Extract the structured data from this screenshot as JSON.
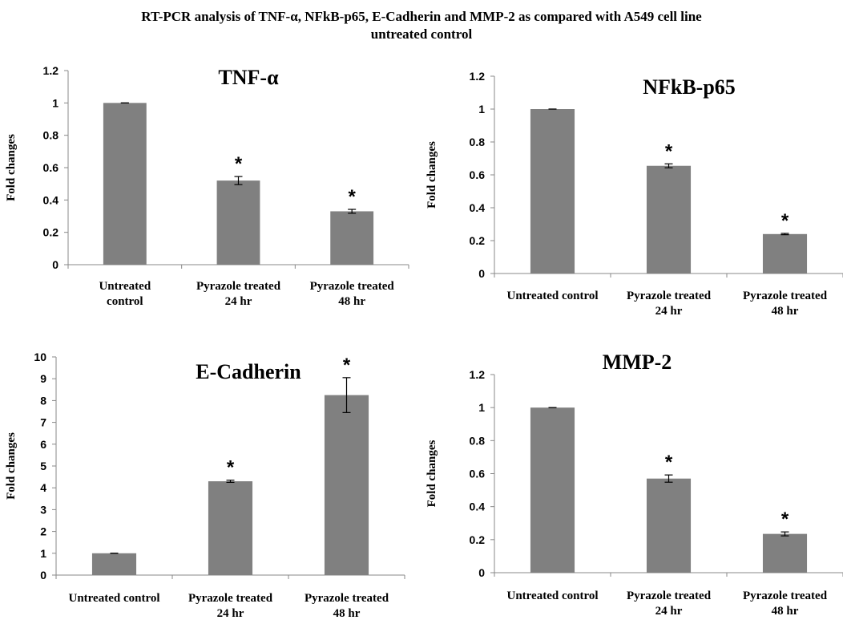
{
  "figure": {
    "title_line1": "RT-PCR analysis of TNF-α, NFkB-p65,  E-Cadherin and MMP-2 as compared with A549 cell line",
    "title_line2": "untreated control"
  },
  "bar_color": "#808080",
  "chart_data": [
    {
      "type": "bar",
      "title": "TNF-α",
      "ylabel": "Fold changes",
      "categories": [
        [
          "Untreated",
          "control"
        ],
        [
          "Pyrazole treated",
          "24 hr"
        ],
        [
          "Pyrazole treated",
          "48 hr"
        ]
      ],
      "values": [
        1.0,
        0.52,
        0.33
      ],
      "errors": [
        0.0,
        0.025,
        0.012
      ],
      "significance": [
        "",
        "*",
        "*"
      ],
      "ylim": [
        0,
        1.2
      ],
      "yticks": [
        "0",
        "0.2",
        "0.4",
        "0.6",
        "0.8",
        "1",
        "1.2"
      ]
    },
    {
      "type": "bar",
      "title": "NFkB-p65",
      "ylabel": "Fold changes",
      "categories": [
        [
          "Untreated control"
        ],
        [
          "Pyrazole treated",
          "24 hr"
        ],
        [
          "Pyrazole treated",
          "48 hr"
        ]
      ],
      "values": [
        1.0,
        0.655,
        0.24
      ],
      "errors": [
        0.0,
        0.012,
        0.004
      ],
      "significance": [
        "",
        "*",
        "*"
      ],
      "ylim": [
        0,
        1.2
      ],
      "yticks": [
        "0",
        "0.2",
        "0.4",
        "0.6",
        "0.8",
        "1",
        "1.2"
      ]
    },
    {
      "type": "bar",
      "title": "E-Cadherin",
      "ylabel": "Fold changes",
      "categories": [
        [
          "Untreated control"
        ],
        [
          "Pyrazole treated",
          "24 hr"
        ],
        [
          "Pyrazole treated",
          "48 hr"
        ]
      ],
      "values": [
        1.0,
        4.3,
        8.25
      ],
      "errors": [
        0.0,
        0.05,
        0.8
      ],
      "significance": [
        "",
        "*",
        "*"
      ],
      "ylim": [
        0,
        10
      ],
      "yticks": [
        "0",
        "1",
        "2",
        "3",
        "4",
        "5",
        "6",
        "7",
        "8",
        "9",
        "10"
      ]
    },
    {
      "type": "bar",
      "title": "MMP-2",
      "ylabel": "Fold changes",
      "categories": [
        [
          "Untreated control"
        ],
        [
          "Pyrazole treated",
          "24 hr"
        ],
        [
          "Pyrazole treated",
          "48 hr"
        ]
      ],
      "values": [
        1.0,
        0.57,
        0.235
      ],
      "errors": [
        0.0,
        0.022,
        0.012
      ],
      "significance": [
        "",
        "*",
        "*"
      ],
      "ylim": [
        0,
        1.2
      ],
      "yticks": [
        "0",
        "0.2",
        "0.4",
        "0.6",
        "0.8",
        "1",
        "1.2"
      ]
    }
  ]
}
